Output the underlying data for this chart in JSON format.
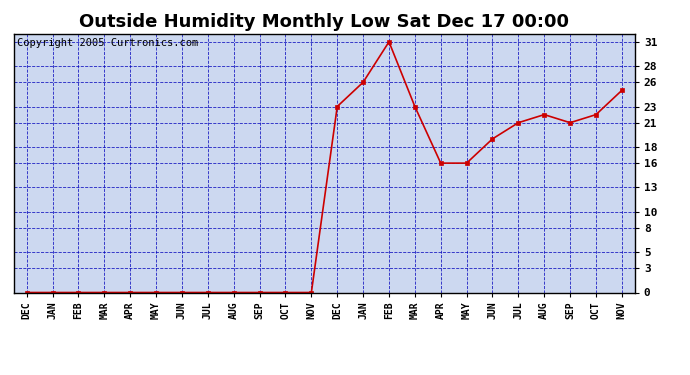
{
  "title": "Outside Humidity Monthly Low Sat Dec 17 00:00",
  "copyright": "Copyright 2005 Curtronics.com",
  "x_labels": [
    "DEC",
    "JAN",
    "FEB",
    "MAR",
    "APR",
    "MAY",
    "JUN",
    "JUL",
    "AUG",
    "SEP",
    "OCT",
    "NOV",
    "DEC",
    "JAN",
    "FEB",
    "MAR",
    "APR",
    "MAY",
    "JUN",
    "JUL",
    "AUG",
    "SEP",
    "OCT",
    "NOV"
  ],
  "y_values": [
    0,
    0,
    0,
    0,
    0,
    0,
    0,
    0,
    0,
    0,
    0,
    0,
    23,
    26,
    31,
    23,
    16,
    16,
    19,
    21,
    22,
    21,
    22,
    25
  ],
  "yticks": [
    0,
    3,
    5,
    8,
    10,
    13,
    16,
    18,
    21,
    23,
    26,
    28,
    31
  ],
  "ylim": [
    0,
    32
  ],
  "line_color": "#cc0000",
  "marker_color": "#cc0000",
  "bg_color": "#ffffff",
  "plot_bg_color": "#ccd8f0",
  "grid_color": "#0000bb",
  "title_fontsize": 13,
  "copyright_fontsize": 7.5
}
